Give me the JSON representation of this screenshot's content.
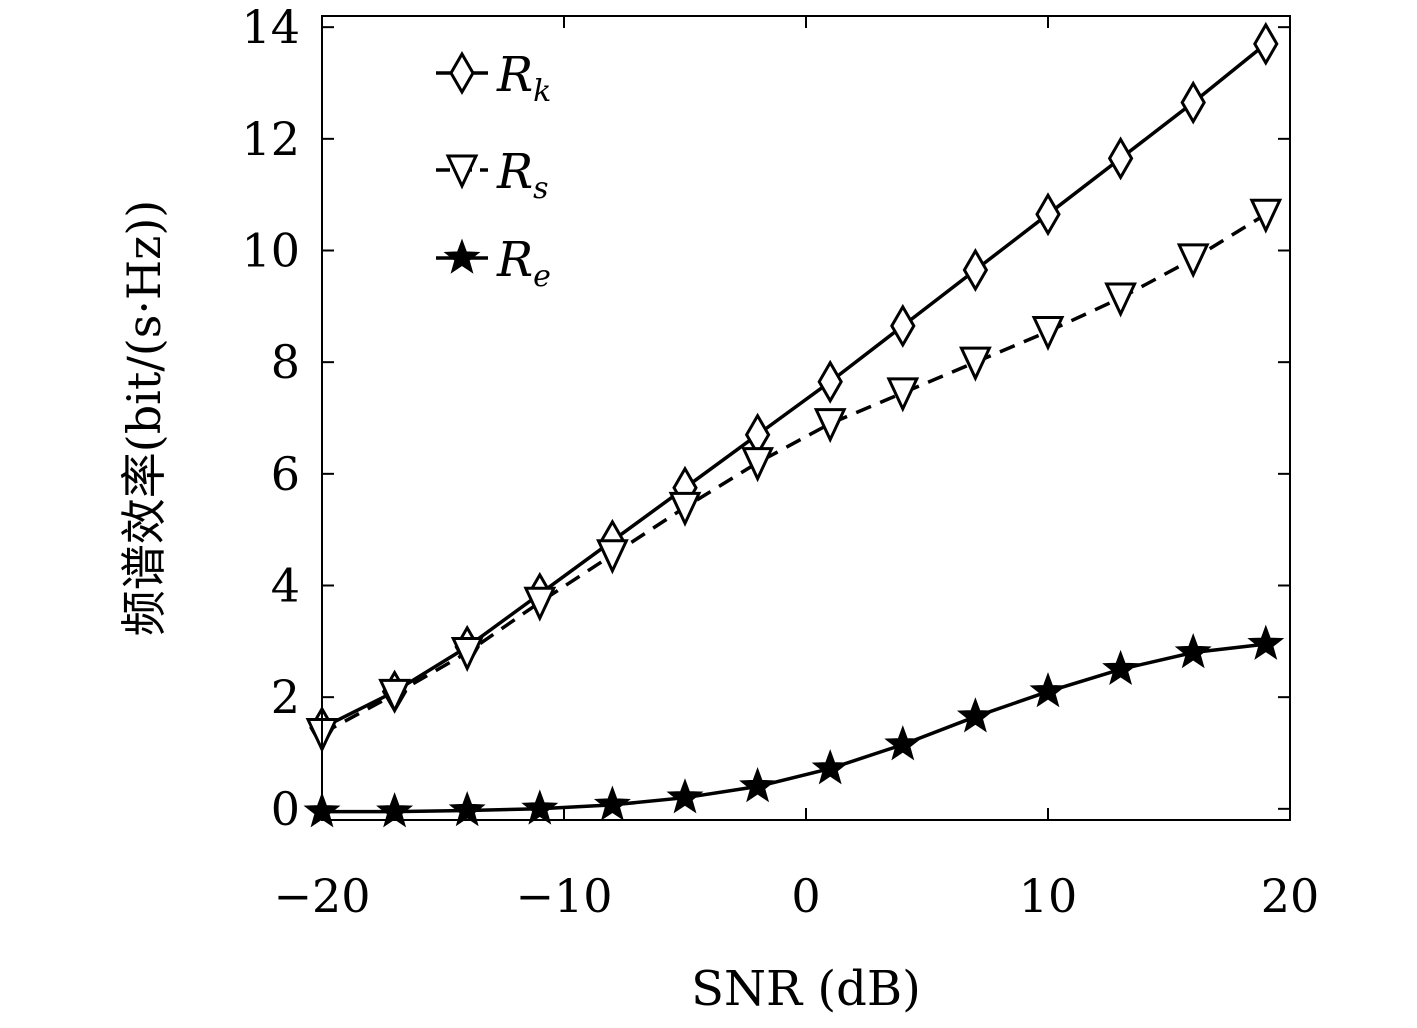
{
  "chart_data": {
    "type": "line",
    "xlabel": "SNR (dB)",
    "ylabel": "频谱效率(bit/(s·Hz))",
    "xlim": [
      -20,
      20
    ],
    "ylim": [
      -0.2,
      14.2
    ],
    "xticks": [
      -20,
      -10,
      0,
      10,
      20
    ],
    "xtick_labels": [
      "−20",
      "−10",
      "0",
      "10",
      "20"
    ],
    "yticks": [
      0,
      2,
      4,
      6,
      8,
      10,
      12,
      14
    ],
    "ytick_labels": [
      "0",
      "2",
      "4",
      "6",
      "8",
      "10",
      "12",
      "14"
    ],
    "grid": false,
    "legend_position": "top-left",
    "x": [
      -20,
      -17,
      -14,
      -11,
      -8,
      -5,
      -2,
      1,
      4,
      7,
      10,
      13,
      16,
      19
    ],
    "series": [
      {
        "name": "R",
        "subscript": "k",
        "marker": "diamond",
        "linestyle": "solid",
        "values": [
          1.45,
          2.1,
          2.9,
          3.85,
          4.8,
          5.75,
          6.7,
          7.65,
          8.65,
          9.65,
          10.65,
          11.65,
          12.65,
          13.7
        ]
      },
      {
        "name": "R",
        "subscript": "s",
        "marker": "triangle-down",
        "linestyle": "dashed",
        "values": [
          1.35,
          2.05,
          2.8,
          3.7,
          4.55,
          5.4,
          6.2,
          6.9,
          7.45,
          8.0,
          8.55,
          9.15,
          9.85,
          10.65
        ]
      },
      {
        "name": "R",
        "subscript": "e",
        "marker": "star",
        "linestyle": "solid",
        "values": [
          -0.05,
          -0.05,
          -0.03,
          0.0,
          0.07,
          0.2,
          0.4,
          0.72,
          1.15,
          1.65,
          2.1,
          2.5,
          2.8,
          2.95
        ]
      }
    ]
  }
}
